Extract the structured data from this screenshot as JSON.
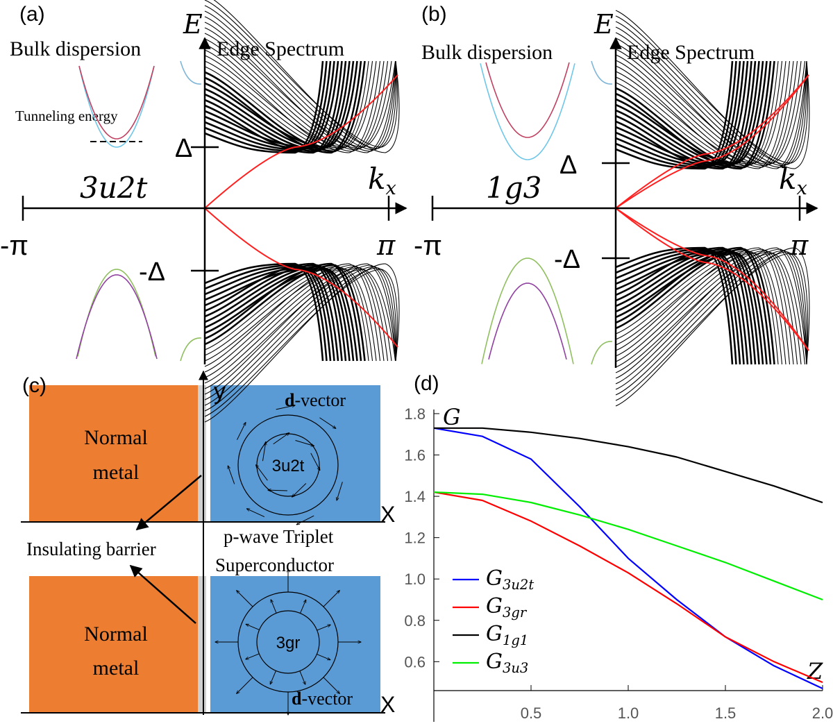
{
  "panel_a": {
    "label": "(a)",
    "energy_axis": "E",
    "left_title": "Bulk dispersion",
    "right_title": "Edge Spectrum",
    "annotation": "Tunneling energy",
    "gap_top": "Δ",
    "gap_bottom": "-Δ",
    "model": "3u2t",
    "momentum_axis": "kx",
    "left_end": "-π",
    "right_end": "π"
  },
  "panel_b": {
    "label": "(b)",
    "energy_axis": "E",
    "left_title": "Bulk dispersion",
    "right_title": "Edge Spectrum",
    "gap_top": "Δ",
    "gap_bottom": "-Δ",
    "model": "1g3",
    "momentum_axis": "kx",
    "left_end": "-π",
    "right_end": "π"
  },
  "panel_c": {
    "label": "(c)",
    "y_axis": "y",
    "x_axis_top": "X",
    "x_axis_bottom": "X",
    "metal_top": [
      "Normal",
      "metal"
    ],
    "metal_bottom": [
      "Normal",
      "metal"
    ],
    "vector_top": "d-vector",
    "vector_bottom": "d-vector",
    "order_top": "3u2t",
    "order_bottom": "3gr",
    "barrier": "Insulating barrier",
    "superconductor": [
      "p-wave Triplet",
      "Superconductor"
    ]
  },
  "chart_data": {
    "type": "line",
    "label": "(d)",
    "y_label": "G",
    "x_label": "Z",
    "x": [
      0,
      0.25,
      0.5,
      0.75,
      1.0,
      1.25,
      1.5,
      1.75,
      2.0
    ],
    "series": [
      {
        "name": "G3u2t",
        "color": "#0000ff",
        "values": [
          1.73,
          1.69,
          1.58,
          1.35,
          1.1,
          0.9,
          0.72,
          0.58,
          0.47
        ]
      },
      {
        "name": "G3gr",
        "color": "#ff0000",
        "values": [
          1.42,
          1.38,
          1.28,
          1.16,
          1.03,
          0.88,
          0.72,
          0.6,
          0.5
        ]
      },
      {
        "name": "G1g1",
        "color": "#000000",
        "values": [
          1.73,
          1.73,
          1.71,
          1.68,
          1.64,
          1.59,
          1.52,
          1.45,
          1.37
        ]
      },
      {
        "name": "G3u3",
        "color": "#00ee00",
        "values": [
          1.42,
          1.41,
          1.37,
          1.31,
          1.24,
          1.16,
          1.08,
          0.99,
          0.9
        ]
      }
    ],
    "xlim": [
      0,
      2.0
    ],
    "ylim": [
      0.46,
      1.82
    ],
    "xticks": [
      0.5,
      {
        "value": 1,
        "label": "1.0"
      },
      1.5,
      {
        "value": 2,
        "label": "2.0"
      }
    ],
    "yticks": [
      0.6,
      0.8,
      {
        "value": 1,
        "label": "1.0"
      },
      1.2,
      1.4,
      1.6,
      1.8
    ]
  }
}
